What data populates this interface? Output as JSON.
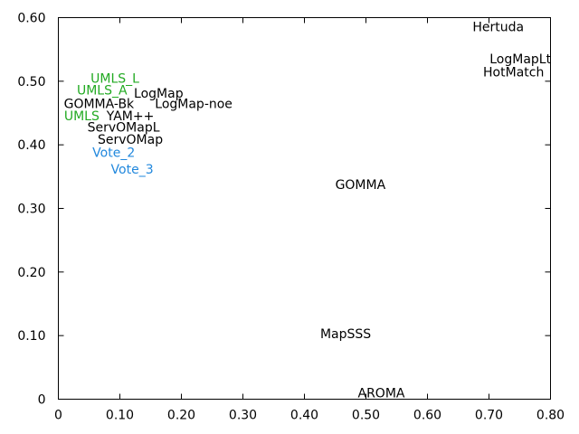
{
  "chart_data": {
    "type": "scatter",
    "title": "",
    "xlabel": "",
    "ylabel": "",
    "xlim": [
      0,
      0.8
    ],
    "ylim": [
      0,
      0.6
    ],
    "grid": false,
    "legend": "none",
    "x_ticks": [
      {
        "value": 0,
        "label": "0"
      },
      {
        "value": 0.1,
        "label": "0.10"
      },
      {
        "value": 0.2,
        "label": "0.20"
      },
      {
        "value": 0.3,
        "label": "0.30"
      },
      {
        "value": 0.4,
        "label": "0.40"
      },
      {
        "value": 0.5,
        "label": "0.50"
      },
      {
        "value": 0.6,
        "label": "0.60"
      },
      {
        "value": 0.7,
        "label": "0.70"
      },
      {
        "value": 0.8,
        "label": "0.80"
      }
    ],
    "y_ticks": [
      {
        "value": 0,
        "label": "0"
      },
      {
        "value": 0.1,
        "label": "0.10"
      },
      {
        "value": 0.2,
        "label": "0.20"
      },
      {
        "value": 0.3,
        "label": "0.30"
      },
      {
        "value": 0.4,
        "label": "0.40"
      },
      {
        "value": 0.5,
        "label": "0.50"
      },
      {
        "value": 0.6,
        "label": "0.60"
      }
    ],
    "points": [
      {
        "label": "Hertuda",
        "x": 0.715,
        "y": 0.586,
        "color": "#000000"
      },
      {
        "label": "LogMapLt",
        "x": 0.751,
        "y": 0.535,
        "color": "#000000"
      },
      {
        "label": "HotMatch",
        "x": 0.74,
        "y": 0.515,
        "color": "#000000"
      },
      {
        "label": "UMLS_L",
        "x": 0.092,
        "y": 0.505,
        "color": "#22aa22"
      },
      {
        "label": "UMLS_A",
        "x": 0.071,
        "y": 0.486,
        "color": "#22aa22"
      },
      {
        "label": "LogMap",
        "x": 0.163,
        "y": 0.481,
        "color": "#000000"
      },
      {
        "label": "GOMMA-Bk",
        "x": 0.066,
        "y": 0.465,
        "color": "#000000"
      },
      {
        "label": "LogMap-noe",
        "x": 0.22,
        "y": 0.465,
        "color": "#000000"
      },
      {
        "label": "UMLS",
        "x": 0.038,
        "y": 0.446,
        "color": "#22aa22"
      },
      {
        "label": "YAM++",
        "x": 0.117,
        "y": 0.446,
        "color": "#000000"
      },
      {
        "label": "ServOMapL",
        "x": 0.106,
        "y": 0.428,
        "color": "#000000"
      },
      {
        "label": "ServOMap",
        "x": 0.117,
        "y": 0.409,
        "color": "#000000"
      },
      {
        "label": "Vote_2",
        "x": 0.09,
        "y": 0.388,
        "color": "#2288dd"
      },
      {
        "label": "Vote_3",
        "x": 0.12,
        "y": 0.362,
        "color": "#2288dd"
      },
      {
        "label": "GOMMA",
        "x": 0.491,
        "y": 0.338,
        "color": "#000000"
      },
      {
        "label": "MapSSS",
        "x": 0.467,
        "y": 0.103,
        "color": "#000000"
      },
      {
        "label": "AROMA",
        "x": 0.525,
        "y": 0.01,
        "color": "#000000"
      }
    ]
  }
}
